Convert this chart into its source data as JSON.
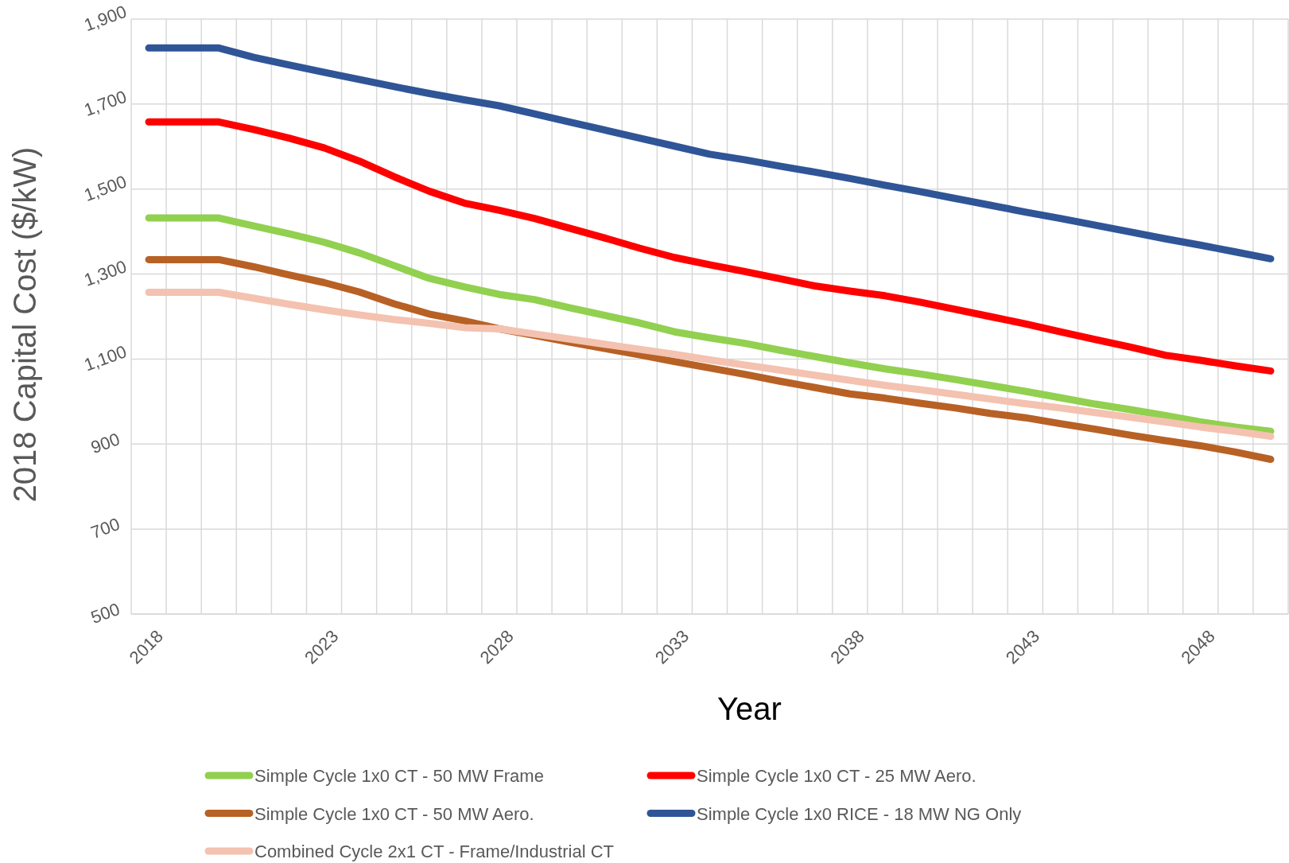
{
  "chart_data": {
    "type": "line",
    "xlabel": "Year",
    "ylabel": "2018 Capital Cost ($/kW)",
    "categories": [
      "2018",
      null,
      null,
      null,
      null,
      "2023",
      null,
      null,
      null,
      null,
      "2028",
      null,
      null,
      null,
      null,
      "2033",
      null,
      null,
      null,
      null,
      "2038",
      null,
      null,
      null,
      null,
      "2043",
      null,
      null,
      null,
      null,
      "2048",
      null,
      null
    ],
    "ylim": [
      500,
      1900
    ],
    "yticks": [
      {
        "value": 500,
        "label": "500"
      },
      {
        "value": 700,
        "label": "700"
      },
      {
        "value": 900,
        "label": "900"
      },
      {
        "value": 1100,
        "label": "1,100"
      },
      {
        "value": 1300,
        "label": "1,300"
      },
      {
        "value": 1500,
        "label": "1,500"
      },
      {
        "value": 1700,
        "label": "1,700"
      },
      {
        "value": 1900,
        "label": "1,900"
      }
    ],
    "grid": true,
    "legend": "bottom",
    "marker": "none",
    "line_style": "solid",
    "series": [
      {
        "name": "Simple Cycle 1x0 CT - 50 MW Frame",
        "color": "#92d050",
        "values": [
          1432,
          1432,
          1432,
          1413,
          1395,
          1375,
          1350,
          1320,
          1290,
          1270,
          1252,
          1240,
          1221,
          1203,
          1185,
          1164,
          1150,
          1137,
          1121,
          1106,
          1091,
          1077,
          1065,
          1052,
          1038,
          1024,
          1009,
          994,
          981,
          967,
          952,
          940,
          930
        ]
      },
      {
        "name": "Simple Cycle 1x0 CT - 25 MW Aero.",
        "color": "#ff0000",
        "values": [
          1658,
          1658,
          1658,
          1640,
          1620,
          1597,
          1566,
          1529,
          1495,
          1467,
          1450,
          1431,
          1408,
          1385,
          1361,
          1339,
          1322,
          1306,
          1289,
          1272,
          1260,
          1249,
          1234,
          1217,
          1200,
          1183,
          1164,
          1146,
          1128,
          1109,
          1097,
          1084,
          1072
        ]
      },
      {
        "name": "Simple Cycle 1x0 CT - 50 MW Aero.",
        "color": "#b86125",
        "values": [
          1334,
          1334,
          1334,
          1317,
          1298,
          1280,
          1258,
          1230,
          1206,
          1190,
          1171,
          1156,
          1140,
          1125,
          1110,
          1094,
          1079,
          1064,
          1048,
          1033,
          1018,
          1008,
          996,
          985,
          972,
          962,
          948,
          935,
          921,
          908,
          896,
          881,
          864
        ]
      },
      {
        "name": "Simple Cycle 1x0 RICE - 18 MW NG Only",
        "color": "#2f5597",
        "values": [
          1832,
          1832,
          1832,
          1810,
          1792,
          1775,
          1758,
          1741,
          1725,
          1710,
          1696,
          1677,
          1658,
          1639,
          1620,
          1601,
          1582,
          1569,
          1554,
          1540,
          1525,
          1509,
          1494,
          1478,
          1462,
          1446,
          1431,
          1415,
          1399,
          1383,
          1368,
          1352,
          1336
        ]
      },
      {
        "name": "Combined Cycle 2x1 CT - Frame/Industrial CT",
        "color": "#f4c2b0",
        "values": [
          1257,
          1257,
          1257,
          1243,
          1229,
          1216,
          1204,
          1193,
          1184,
          1174,
          1171,
          1159,
          1147,
          1135,
          1123,
          1111,
          1098,
          1086,
          1074,
          1062,
          1050,
          1038,
          1028,
          1017,
          1006,
          995,
          985,
          974,
          963,
          952,
          940,
          930,
          918
        ]
      }
    ]
  }
}
